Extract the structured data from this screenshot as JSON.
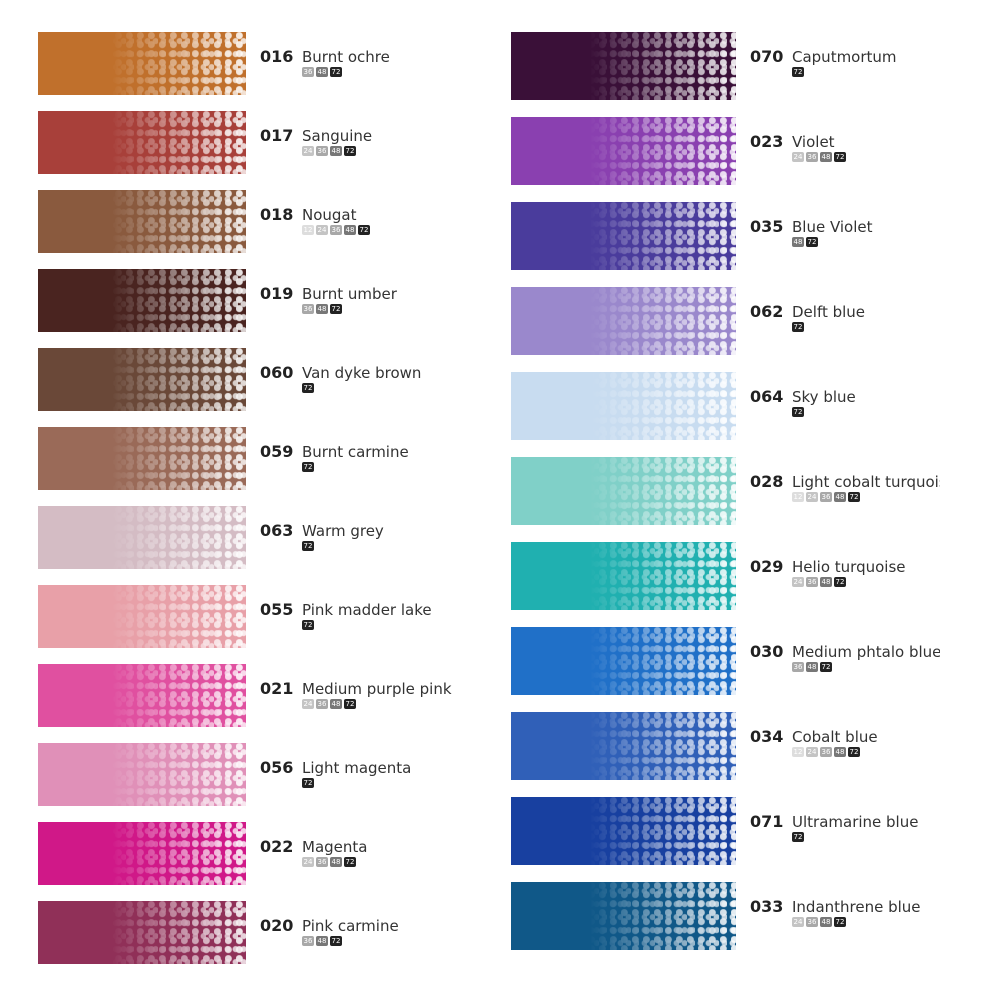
{
  "sizes": [
    "12",
    "24",
    "36",
    "48",
    "72"
  ],
  "left": [
    {
      "code": "016",
      "name": "Burnt ochre",
      "color": "#c0702c",
      "badges": [
        "36",
        "48",
        "72"
      ]
    },
    {
      "code": "017",
      "name": "Sanguine",
      "color": "#a8403a",
      "badges": [
        "24",
        "36",
        "48",
        "72"
      ]
    },
    {
      "code": "018",
      "name": "Nougat",
      "color": "#8a5a3e",
      "badges": [
        "12",
        "24",
        "36",
        "48",
        "72"
      ]
    },
    {
      "code": "019",
      "name": "Burnt umber",
      "color": "#4a2420",
      "badges": [
        "36",
        "48",
        "72"
      ]
    },
    {
      "code": "060",
      "name": "Van dyke brown",
      "color": "#6a4838",
      "badges": [
        "72"
      ]
    },
    {
      "code": "059",
      "name": "Burnt carmine",
      "color": "#9a6a58",
      "badges": [
        "72"
      ]
    },
    {
      "code": "063",
      "name": "Warm grey",
      "color": "#d4bcc4",
      "badges": [
        "72"
      ]
    },
    {
      "code": "055",
      "name": "Pink madder lake",
      "color": "#e8a0a8",
      "badges": [
        "72"
      ]
    },
    {
      "code": "021",
      "name": "Medium purple pink",
      "color": "#e050a0",
      "badges": [
        "24",
        "36",
        "48",
        "72"
      ]
    },
    {
      "code": "056",
      "name": "Light magenta",
      "color": "#e090b8",
      "badges": [
        "72"
      ]
    },
    {
      "code": "022",
      "name": "Magenta",
      "color": "#d01888",
      "badges": [
        "24",
        "36",
        "48",
        "72"
      ]
    },
    {
      "code": "020",
      "name": "Pink carmine",
      "color": "#903058",
      "badges": [
        "36",
        "48",
        "72"
      ]
    }
  ],
  "right": [
    {
      "code": "070",
      "name": "Caputmortum",
      "color": "#3a1038",
      "badges": [
        "72"
      ]
    },
    {
      "code": "023",
      "name": "Violet",
      "color": "#8a40b0",
      "badges": [
        "24",
        "36",
        "48",
        "72"
      ]
    },
    {
      "code": "035",
      "name": "Blue Violet",
      "color": "#4a3c9c",
      "badges": [
        "48",
        "72"
      ]
    },
    {
      "code": "062",
      "name": "Delft blue",
      "color": "#9a88cc",
      "badges": [
        "72"
      ]
    },
    {
      "code": "064",
      "name": "Sky blue",
      "color": "#c8dcf0",
      "badges": [
        "72"
      ]
    },
    {
      "code": "028",
      "name": "Light cobalt turquoise",
      "color": "#80d0c8",
      "badges": [
        "12",
        "24",
        "36",
        "48",
        "72"
      ]
    },
    {
      "code": "029",
      "name": "Helio turquoise",
      "color": "#20b0b0",
      "badges": [
        "24",
        "36",
        "48",
        "72"
      ]
    },
    {
      "code": "030",
      "name": "Medium phtalo blue",
      "color": "#2070c8",
      "badges": [
        "36",
        "48",
        "72"
      ]
    },
    {
      "code": "034",
      "name": "Cobalt blue",
      "color": "#3060b8",
      "badges": [
        "12",
        "24",
        "36",
        "48",
        "72"
      ]
    },
    {
      "code": "071",
      "name": "Ultramarine blue",
      "color": "#1840a0",
      "badges": [
        "72"
      ]
    },
    {
      "code": "033",
      "name": "Indanthrene blue",
      "color": "#105888",
      "badges": [
        "24",
        "36",
        "48",
        "72"
      ]
    }
  ]
}
